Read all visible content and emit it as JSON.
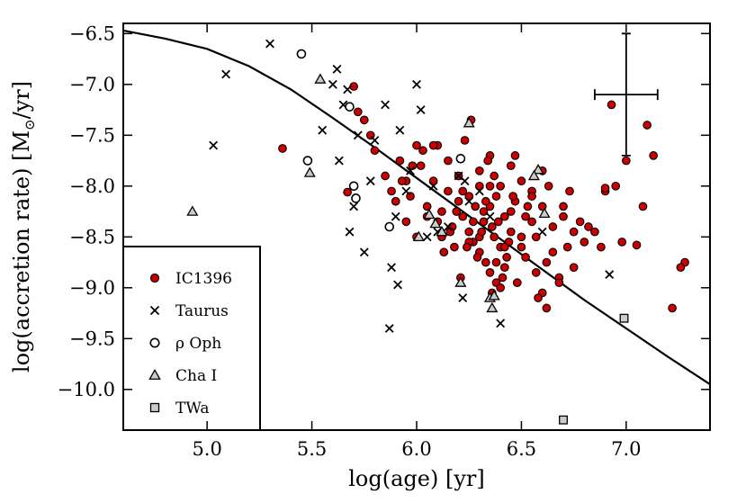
{
  "chart_data": {
    "type": "scatter",
    "xlabel": "log(age) [yr]",
    "ylabel_prefix": "log(accretion rate) [M",
    "ylabel_sub": "⊙",
    "ylabel_suffix": "/yr]",
    "xlim": [
      4.6,
      7.4
    ],
    "ylim": [
      -10.4,
      -6.4
    ],
    "x_ticks": [
      5.0,
      5.5,
      6.0,
      6.5,
      7.0
    ],
    "x_tick_labels": [
      "5.0",
      "5.5",
      "6.0",
      "6.5",
      "7.0"
    ],
    "y_ticks": [
      -6.5,
      -7.0,
      -7.5,
      -8.0,
      -8.5,
      -9.0,
      -9.5,
      -10.0
    ],
    "y_tick_labels": [
      "−6.5",
      "−7.0",
      "−7.5",
      "−8.0",
      "−8.5",
      "−9.0",
      "−9.5",
      "−10.0"
    ],
    "legend_position": "lower-left",
    "error_bar": {
      "x": 7.0,
      "y": -7.1,
      "xerr": 0.15,
      "yerr": 0.6
    },
    "model_curve": {
      "x": [
        4.6,
        4.8,
        5.0,
        5.2,
        5.4,
        5.6,
        5.8,
        6.0,
        6.2,
        6.4,
        6.6,
        6.8,
        7.0,
        7.2,
        7.4
      ],
      "y": [
        -6.47,
        -6.55,
        -6.65,
        -6.82,
        -7.05,
        -7.33,
        -7.62,
        -7.92,
        -8.22,
        -8.52,
        -8.82,
        -9.12,
        -9.4,
        -9.68,
        -9.95
      ]
    },
    "series": [
      {
        "name": "IC1396",
        "marker": "circle",
        "color": "#cc0000",
        "x": [
          5.36,
          5.7,
          5.72,
          5.67,
          5.75,
          5.78,
          5.8,
          5.85,
          5.88,
          5.9,
          5.92,
          5.95,
          5.97,
          6.0,
          6.02,
          6.05,
          6.08,
          6.1,
          6.12,
          6.15,
          6.17,
          6.2,
          6.22,
          6.25,
          6.27,
          6.3,
          6.3,
          6.32,
          6.33,
          6.35,
          6.35,
          6.37,
          6.38,
          6.4,
          6.4,
          6.42,
          6.43,
          6.45,
          6.47,
          6.5,
          6.52,
          6.55,
          6.57,
          6.6,
          6.62,
          6.65,
          6.68,
          6.7,
          6.72,
          6.75,
          6.8,
          6.85,
          6.9,
          6.93,
          6.98,
          7.05,
          7.1,
          7.13,
          7.22,
          7.28,
          6.1,
          6.15,
          6.2,
          6.25,
          6.3,
          6.35,
          6.4,
          6.45,
          6.5,
          6.55,
          6.6,
          6.3,
          6.32,
          6.36,
          6.38,
          6.42,
          6.28,
          6.22,
          6.18,
          6.12,
          6.05,
          6.0,
          5.95,
          5.9,
          6.65,
          6.7,
          6.75,
          6.6,
          6.55,
          6.5,
          6.45,
          6.48,
          6.35,
          6.33,
          6.27,
          6.25,
          6.38,
          6.41,
          6.44,
          6.36,
          6.31,
          6.29,
          6.24,
          6.21,
          6.16,
          6.13,
          6.08,
          6.03,
          5.98,
          5.93,
          6.58,
          6.62,
          6.68,
          6.73,
          6.78,
          6.82,
          6.88,
          6.95,
          7.0,
          7.08,
          7.26,
          6.9,
          6.42,
          6.46,
          6.52,
          6.57,
          6.63,
          6.34,
          6.37,
          6.39,
          6.26,
          6.23,
          6.19,
          6.47,
          6.53
        ],
        "y": [
          -7.63,
          -7.02,
          -7.27,
          -8.06,
          -7.35,
          -7.5,
          -7.65,
          -7.9,
          -8.05,
          -8.15,
          -7.75,
          -7.95,
          -8.1,
          -7.6,
          -7.8,
          -8.2,
          -7.95,
          -8.35,
          -8.5,
          -8.05,
          -8.4,
          -8.15,
          -8.3,
          -8.45,
          -8.55,
          -8.0,
          -8.65,
          -8.35,
          -8.75,
          -8.2,
          -8.85,
          -8.5,
          -8.95,
          -8.6,
          -9.0,
          -8.3,
          -8.7,
          -8.45,
          -8.15,
          -8.6,
          -8.3,
          -8.05,
          -8.5,
          -8.2,
          -8.75,
          -8.4,
          -8.9,
          -8.3,
          -8.6,
          -8.45,
          -8.55,
          -8.45,
          -8.05,
          -7.2,
          -8.55,
          -8.58,
          -7.4,
          -7.7,
          -9.2,
          -8.75,
          -7.6,
          -7.75,
          -7.9,
          -8.1,
          -7.85,
          -7.7,
          -8.0,
          -7.8,
          -7.95,
          -8.1,
          -7.85,
          -8.5,
          -8.25,
          -8.4,
          -8.1,
          -8.8,
          -8.2,
          -8.05,
          -8.6,
          -8.25,
          -8.3,
          -8.5,
          -8.35,
          -8.15,
          -8.65,
          -8.2,
          -8.8,
          -9.05,
          -8.35,
          -8.5,
          -8.25,
          -8.95,
          -8.0,
          -8.15,
          -8.35,
          -8.55,
          -8.75,
          -8.9,
          -8.55,
          -9.05,
          -8.45,
          -8.7,
          -8.6,
          -8.9,
          -8.45,
          -8.65,
          -7.6,
          -7.65,
          -7.8,
          -7.95,
          -9.1,
          -9.2,
          -8.95,
          -8.05,
          -8.35,
          -8.4,
          -8.6,
          -8.0,
          -7.75,
          -8.2,
          -8.8,
          -8.02,
          -8.6,
          -8.1,
          -8.7,
          -8.85,
          -8.0,
          -7.75,
          -7.9,
          -8.35,
          -7.35,
          -7.55,
          -8.25,
          -7.7,
          -8.2
        ]
      },
      {
        "name": "Taurus",
        "marker": "x",
        "color": "#000000",
        "x": [
          5.03,
          5.09,
          5.3,
          5.55,
          5.6,
          5.62,
          5.63,
          5.65,
          5.68,
          5.7,
          5.72,
          5.75,
          5.78,
          5.8,
          5.85,
          5.88,
          5.9,
          5.92,
          5.95,
          5.97,
          6.0,
          6.02,
          6.05,
          6.08,
          6.1,
          6.15,
          6.2,
          6.22,
          6.25,
          5.87,
          5.91,
          5.67,
          6.4,
          6.6,
          6.92,
          6.3,
          6.35,
          6.23
        ],
        "y": [
          -7.6,
          -6.9,
          -6.6,
          -7.45,
          -7.0,
          -6.85,
          -7.75,
          -7.2,
          -8.45,
          -8.2,
          -7.5,
          -8.65,
          -7.95,
          -7.55,
          -7.2,
          -8.8,
          -8.3,
          -7.45,
          -8.05,
          -7.85,
          -7.0,
          -7.25,
          -8.5,
          -8.0,
          -8.45,
          -8.4,
          -7.9,
          -9.1,
          -8.15,
          -9.4,
          -8.97,
          -7.05,
          -9.35,
          -8.45,
          -8.87,
          -8.05,
          -8.3,
          -7.95
        ]
      },
      {
        "name": "ρ Oph",
        "marker": "circle-open",
        "color": "#000000",
        "x": [
          5.45,
          5.48,
          5.68,
          5.7,
          5.71,
          5.87,
          6.21
        ],
        "y": [
          -6.7,
          -7.75,
          -7.22,
          -8.0,
          -8.12,
          -8.4,
          -7.73
        ]
      },
      {
        "name": "Cha I",
        "marker": "triangle",
        "color": "#cccccc",
        "x": [
          4.93,
          5.49,
          5.54,
          6.01,
          6.06,
          6.09,
          6.12,
          6.21,
          6.25,
          6.35,
          6.36,
          6.37,
          6.58,
          6.61,
          6.56
        ],
        "y": [
          -8.25,
          -7.87,
          -6.95,
          -8.5,
          -8.28,
          -8.37,
          -8.45,
          -8.95,
          -7.38,
          -9.1,
          -9.2,
          -9.08,
          -7.84,
          -8.27,
          -7.9
        ]
      },
      {
        "name": "TWa",
        "marker": "square",
        "color": "#cccccc",
        "x": [
          6.7,
          6.99
        ],
        "y": [
          -10.3,
          -9.3
        ]
      }
    ]
  }
}
